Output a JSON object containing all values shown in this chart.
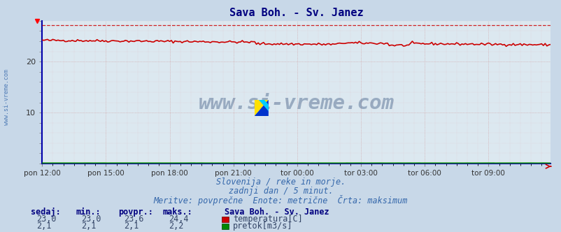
{
  "title": "Sava Boh. - Sv. Janez",
  "title_color": "#000080",
  "bg_color": "#c8d8e8",
  "plot_bg_color": "#dce8f0",
  "grid_color": "#cc8888",
  "x_tick_labels": [
    "pon 12:00",
    "pon 15:00",
    "pon 18:00",
    "pon 21:00",
    "tor 00:00",
    "tor 03:00",
    "tor 06:00",
    "tor 09:00"
  ],
  "x_tick_positions": [
    0,
    36,
    72,
    108,
    144,
    180,
    216,
    252
  ],
  "ylim": [
    0,
    28
  ],
  "yticks": [
    10,
    20
  ],
  "temp_base": 23.5,
  "temp_max_line": 27.2,
  "flow_value": 0.07,
  "n_points": 288,
  "temp_color": "#cc0000",
  "temp_max_color": "#cc0000",
  "flow_color": "#008800",
  "watermark": "www.si-vreme.com",
  "watermark_color": "#1a3a6a",
  "watermark_alpha": 0.35,
  "subtitle1": "Slovenija / reke in morje.",
  "subtitle2": "zadnji dan / 5 minut.",
  "subtitle3": "Meritve: povprečne  Enote: metrične  Črta: maksimum",
  "subtitle_color": "#3366aa",
  "label_color": "#000080",
  "label_sedaj": "sedaj:",
  "label_min": "min.:",
  "label_povpr": "povpr.:",
  "label_maks": "maks.:",
  "label_station": "Sava Boh. - Sv. Janez",
  "val_temp_sedaj": "23,0",
  "val_temp_min": "23,0",
  "val_temp_povpr": "23,6",
  "val_temp_maks": "24,4",
  "val_flow_sedaj": "2,1",
  "val_flow_min": "2,1",
  "val_flow_povpr": "2,1",
  "val_flow_maks": "2,2",
  "legend_temp": "temperatura[C]",
  "legend_flow": "pretok[m3/s]",
  "left_label": "www.si-vreme.com",
  "left_label_color": "#3366aa",
  "spine_color": "#0000aa",
  "arrow_color": "#cc0000"
}
